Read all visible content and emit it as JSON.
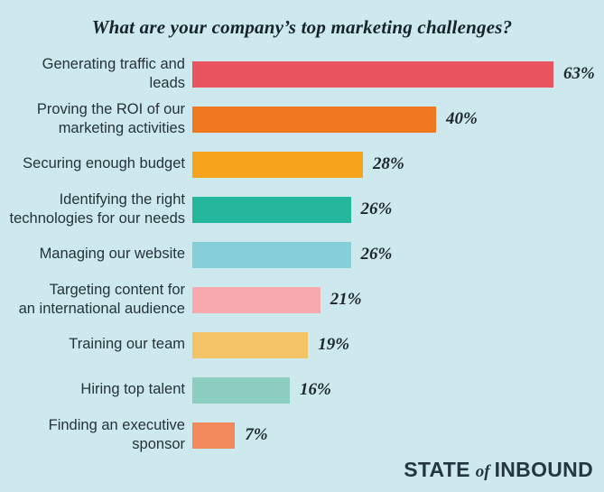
{
  "background_color": "#CDE9EE",
  "chart_data": {
    "type": "bar",
    "orientation": "horizontal",
    "title": "What are your company’s top marketing challenges?",
    "xlabel": "",
    "ylabel": "",
    "xlim": [
      0,
      70
    ],
    "grid": false,
    "legend": false,
    "categories": [
      "Generating traffic and leads",
      "Proving the ROI of our marketing activities",
      "Securing enough budget",
      "Identifying the right technologies for our needs",
      "Managing our website",
      "Targeting content for an international audience",
      "Training our team",
      "Hiring top talent",
      "Finding an executive sponsor"
    ],
    "values": [
      63,
      40,
      28,
      26,
      26,
      21,
      19,
      16,
      7
    ],
    "bars": [
      {
        "label_lines": [
          "Generating traffic and leads"
        ],
        "value": 63,
        "value_label": "63%",
        "color": "#EA5460"
      },
      {
        "label_lines": [
          "Proving the ROI of our",
          "marketing activities"
        ],
        "value": 40,
        "value_label": "40%",
        "color": "#F0791F"
      },
      {
        "label_lines": [
          "Securing enough budget"
        ],
        "value": 28,
        "value_label": "28%",
        "color": "#F7A41D"
      },
      {
        "label_lines": [
          "Identifying the right",
          "technologies for our needs"
        ],
        "value": 26,
        "value_label": "26%",
        "color": "#25B79D"
      },
      {
        "label_lines": [
          "Managing our website"
        ],
        "value": 26,
        "value_label": "26%",
        "color": "#85CFDB"
      },
      {
        "label_lines": [
          "Targeting content for",
          "an international audience"
        ],
        "value": 21,
        "value_label": "21%",
        "color": "#F7A9AE"
      },
      {
        "label_lines": [
          "Training our team"
        ],
        "value": 19,
        "value_label": "19%",
        "color": "#F4C368"
      },
      {
        "label_lines": [
          "Hiring top talent"
        ],
        "value": 16,
        "value_label": "16%",
        "color": "#8CCFC1"
      },
      {
        "label_lines": [
          "Finding an executive sponsor"
        ],
        "value": 7,
        "value_label": "7%",
        "color": "#F28A5B"
      }
    ]
  },
  "logo": {
    "state": "STATE",
    "of": "of",
    "inbound": "INBOUND"
  }
}
